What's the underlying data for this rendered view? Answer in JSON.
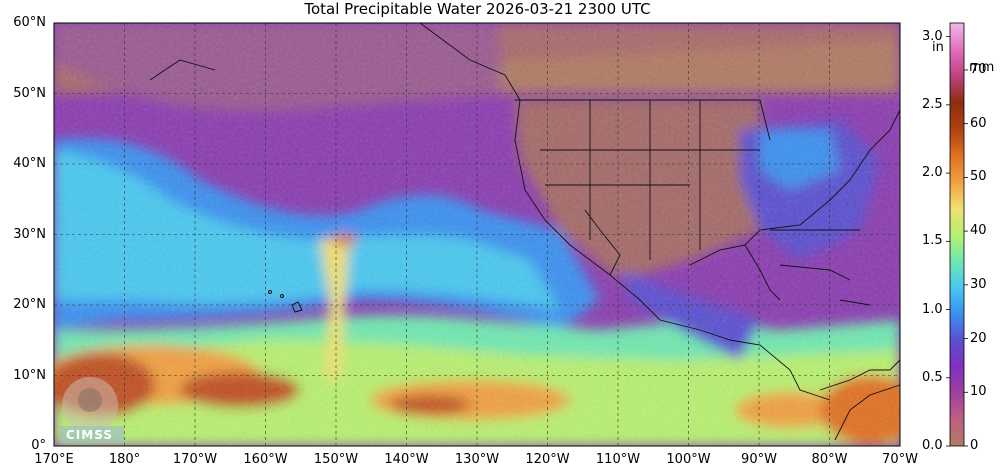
{
  "title": "Total Precipitable Water  2026-03-21 2300 UTC",
  "logo_text": "CIMSS",
  "lat_labels": [
    "60°N",
    "50°N",
    "40°N",
    "30°N",
    "20°N",
    "10°N",
    "0°"
  ],
  "lon_labels": [
    "170°E",
    "180°",
    "170°W",
    "160°W",
    "150°W",
    "140°W",
    "130°W",
    "120°W",
    "110°W",
    "100°W",
    "90°W",
    "80°W",
    "70°W"
  ],
  "colorbar": {
    "left_unit": "in",
    "right_unit": "mm",
    "left_ticks": [
      "3.0",
      "2.5",
      "2.0",
      "1.5",
      "1.0",
      "0.5",
      "0.0"
    ],
    "right_ticks": [
      "70",
      "60",
      "50",
      "40",
      "30",
      "20",
      "10",
      "0"
    ],
    "colors": [
      "#b07a64",
      "#c06080",
      "#a040a0",
      "#8030c0",
      "#5a50d0",
      "#3a90f0",
      "#48c8f0",
      "#70e8b0",
      "#b8f070",
      "#f0e070",
      "#f0a040",
      "#e07020",
      "#b04010",
      "#8c2e10",
      "#c04080",
      "#e070c0",
      "#f0b8e8"
    ]
  },
  "map": {
    "land_color": "#a86e60",
    "ocean_moist_color": "#e07a30",
    "gridlines": "dashed"
  }
}
